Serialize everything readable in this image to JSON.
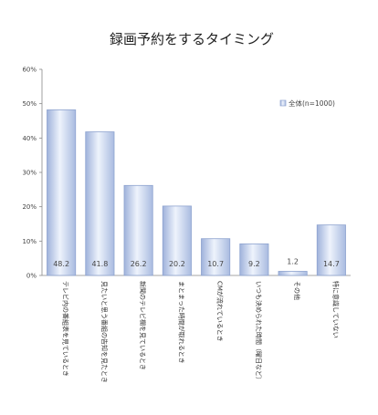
{
  "chart_data": {
    "type": "bar",
    "title": "録画予約をするタイミング",
    "categories": [
      "テレビ内の番組表を見ているとき",
      "見たいと思う番組の告知を見たとき",
      "新聞のテレビ欄を見ているとき",
      "まとまった時間が取れるとき",
      "CMが流れているとき",
      "いつも決められた時間（曜日など）",
      "その他",
      "特に意識していない"
    ],
    "series": [
      {
        "name": "全体(n=1000)",
        "values": [
          48.2,
          41.8,
          26.2,
          20.2,
          10.7,
          9.2,
          1.2,
          14.7
        ]
      }
    ],
    "value_labels": [
      "48.2",
      "41.8",
      "26.2",
      "20.2",
      "10.7",
      "9.2",
      "1.2",
      "14.7"
    ],
    "yticks": [
      "0%",
      "10%",
      "20%",
      "30%",
      "40%",
      "50%",
      "60%"
    ],
    "ylim": [
      0,
      60
    ],
    "xlabel": "",
    "ylabel": "",
    "legend_position": "top-right",
    "grid": false,
    "bar_color": "#c4d2ec",
    "bar_edge_color": "#8ea3cf"
  }
}
